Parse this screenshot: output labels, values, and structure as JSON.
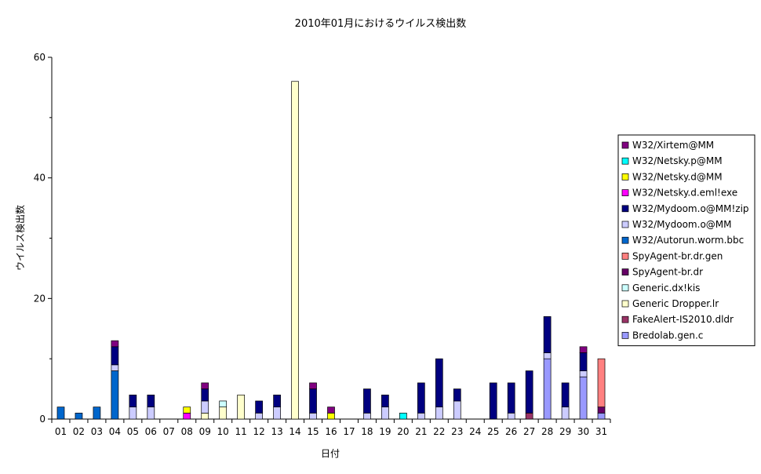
{
  "chart_data": {
    "type": "bar",
    "stacked": true,
    "title": "2010年01月におけるウイルス検出数",
    "xlabel": "日付",
    "ylabel": "ウイルス検出数",
    "ylim": [
      0,
      60
    ],
    "yticks": [
      0,
      20,
      40,
      60
    ],
    "grid": false,
    "legend_position": "right",
    "categories": [
      "01",
      "02",
      "03",
      "04",
      "05",
      "06",
      "07",
      "08",
      "09",
      "10",
      "11",
      "12",
      "13",
      "14",
      "15",
      "16",
      "17",
      "18",
      "19",
      "20",
      "21",
      "22",
      "23",
      "24",
      "25",
      "26",
      "27",
      "28",
      "29",
      "30",
      "31"
    ],
    "series": [
      {
        "name": "Bredolab.gen.c",
        "color": "#9999ff",
        "values": [
          0,
          0,
          0,
          0,
          0,
          0,
          0,
          0,
          0,
          0,
          0,
          0,
          0,
          0,
          0,
          0,
          0,
          0,
          0,
          0,
          0,
          0,
          0,
          0,
          0,
          0,
          0,
          10,
          0,
          7,
          1
        ]
      },
      {
        "name": "FakeAlert-IS2010.dldr",
        "color": "#993366",
        "values": [
          0,
          0,
          0,
          0,
          0,
          0,
          0,
          0,
          0,
          0,
          0,
          0,
          0,
          0,
          0,
          0,
          0,
          0,
          0,
          0,
          0,
          0,
          0,
          0,
          0,
          0,
          1,
          0,
          0,
          0,
          0
        ]
      },
      {
        "name": "Generic Dropper.lr",
        "color": "#ffffcc",
        "values": [
          0,
          0,
          0,
          0,
          0,
          0,
          0,
          0,
          1,
          2,
          4,
          0,
          0,
          56,
          0,
          0,
          0,
          0,
          0,
          0,
          0,
          0,
          0,
          0,
          0,
          0,
          0,
          0,
          0,
          0,
          0
        ]
      },
      {
        "name": "Generic.dx!kis",
        "color": "#ccffff",
        "values": [
          0,
          0,
          0,
          0,
          0,
          0,
          0,
          0,
          0,
          1,
          0,
          0,
          0,
          0,
          0,
          0,
          0,
          0,
          0,
          0,
          0,
          0,
          0,
          0,
          0,
          0,
          0,
          0,
          0,
          0,
          0
        ]
      },
      {
        "name": "SpyAgent-br.dr",
        "color": "#660066",
        "values": [
          0,
          0,
          0,
          0,
          0,
          0,
          0,
          0,
          0,
          0,
          0,
          0,
          0,
          0,
          0,
          0,
          0,
          0,
          0,
          0,
          0,
          0,
          0,
          0,
          0,
          0,
          0,
          0,
          0,
          0,
          1
        ]
      },
      {
        "name": "SpyAgent-br.dr.gen",
        "color": "#ff8080",
        "values": [
          0,
          0,
          0,
          0,
          0,
          0,
          0,
          0,
          0,
          0,
          0,
          0,
          0,
          0,
          0,
          0,
          0,
          0,
          0,
          0,
          0,
          0,
          0,
          0,
          0,
          0,
          0,
          0,
          0,
          0,
          8
        ]
      },
      {
        "name": "W32/Autorun.worm.bbc",
        "color": "#0066cc",
        "values": [
          2,
          1,
          2,
          8,
          0,
          0,
          0,
          0,
          0,
          0,
          0,
          0,
          0,
          0,
          0,
          0,
          0,
          0,
          0,
          0,
          0,
          0,
          0,
          0,
          0,
          0,
          0,
          0,
          0,
          0,
          0
        ]
      },
      {
        "name": "W32/Mydoom.o@MM",
        "color": "#ccccff",
        "values": [
          0,
          0,
          0,
          1,
          2,
          2,
          0,
          0,
          2,
          0,
          0,
          1,
          2,
          0,
          1,
          0,
          0,
          1,
          2,
          0,
          1,
          2,
          3,
          0,
          0,
          1,
          0,
          1,
          2,
          1,
          0
        ]
      },
      {
        "name": "W32/Mydoom.o@MM!zip",
        "color": "#000080",
        "values": [
          0,
          0,
          0,
          3,
          2,
          2,
          0,
          0,
          2,
          0,
          0,
          2,
          2,
          0,
          4,
          0,
          0,
          4,
          2,
          0,
          5,
          8,
          2,
          0,
          6,
          5,
          7,
          6,
          4,
          3,
          0
        ]
      },
      {
        "name": "W32/Netsky.d.eml!exe",
        "color": "#ff00ff",
        "values": [
          0,
          0,
          0,
          0,
          0,
          0,
          0,
          1,
          0,
          0,
          0,
          0,
          0,
          0,
          0,
          0,
          0,
          0,
          0,
          0,
          0,
          0,
          0,
          0,
          0,
          0,
          0,
          0,
          0,
          0,
          0
        ]
      },
      {
        "name": "W32/Netsky.d@MM",
        "color": "#ffff00",
        "values": [
          0,
          0,
          0,
          0,
          0,
          0,
          0,
          1,
          0,
          0,
          0,
          0,
          0,
          0,
          0,
          1,
          0,
          0,
          0,
          0,
          0,
          0,
          0,
          0,
          0,
          0,
          0,
          0,
          0,
          0,
          0
        ]
      },
      {
        "name": "W32/Netsky.p@MM",
        "color": "#00ffff",
        "values": [
          0,
          0,
          0,
          0,
          0,
          0,
          0,
          0,
          0,
          0,
          0,
          0,
          0,
          0,
          0,
          0,
          0,
          0,
          0,
          1,
          0,
          0,
          0,
          0,
          0,
          0,
          0,
          0,
          0,
          0,
          0
        ]
      },
      {
        "name": "W32/Xirtem@MM",
        "color": "#800080",
        "values": [
          0,
          0,
          0,
          1,
          0,
          0,
          0,
          0,
          1,
          0,
          0,
          0,
          0,
          0,
          1,
          1,
          0,
          0,
          0,
          0,
          0,
          0,
          0,
          0,
          0,
          0,
          0,
          0,
          0,
          1,
          0
        ]
      }
    ],
    "segment_order": [
      6,
      0,
      1,
      4,
      5,
      2,
      3,
      7,
      8,
      9,
      10,
      11,
      12
    ],
    "legend_order": [
      12,
      11,
      10,
      9,
      8,
      7,
      6,
      5,
      4,
      3,
      2,
      1,
      0
    ]
  }
}
